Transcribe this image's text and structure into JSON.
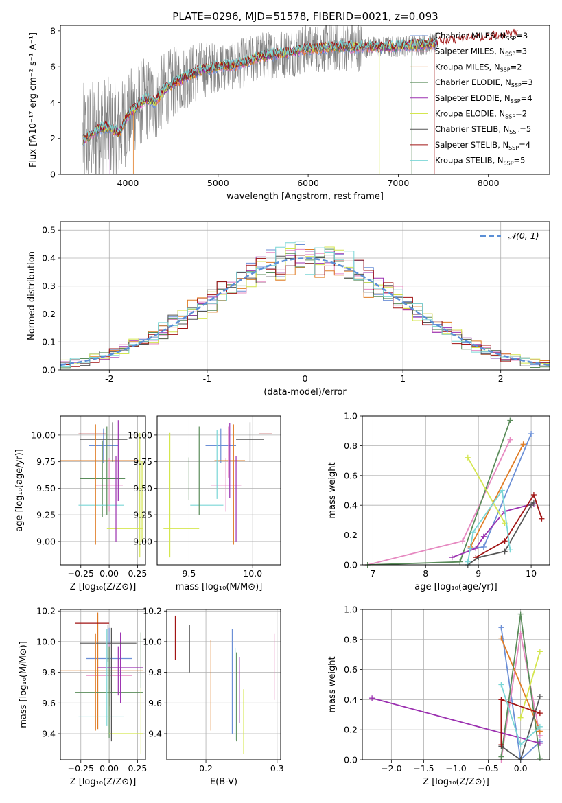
{
  "figure_title": "PLATE=0296, MJD=51578, FIBERID=0021, z=0.093",
  "model_colors": [
    "#6b8fd6",
    "#e688c0",
    "#e07c25",
    "#5a8c5a",
    "#9b30b0",
    "#d4e64e",
    "#555555",
    "#a11414",
    "#7ad6d6"
  ],
  "chart_data": [
    {
      "type": "line",
      "panel": "spectrum",
      "xlabel": "wavelength [Angstrom, rest frame]",
      "ylabel": "Flux [fλ10⁻¹⁷ erg cm⁻² s⁻¹ A⁻¹]",
      "xlim": [
        3250,
        8680
      ],
      "ylim": [
        0,
        8.3
      ],
      "xticks": [
        4000,
        5000,
        6000,
        7000,
        8000
      ],
      "yticks": [
        0,
        2,
        4,
        6,
        8
      ],
      "legend": [
        {
          "name": "Chabrier MILES",
          "nssp": "3"
        },
        {
          "name": "Salpeter MILES",
          "nssp": "3"
        },
        {
          "name": "Kroupa MILES",
          "nssp": "2"
        },
        {
          "name": "Chabrier ELODIE",
          "nssp": "3"
        },
        {
          "name": "Salpeter ELODIE",
          "nssp": "4"
        },
        {
          "name": "Kroupa ELODIE",
          "nssp": "2"
        },
        {
          "name": "Chabrier STELIB",
          "nssp": "5"
        },
        {
          "name": "Salpeter STELIB",
          "nssp": "4"
        },
        {
          "name": "Kroupa STELIB",
          "nssp": "5"
        }
      ],
      "nssp_label": "N",
      "nssp_sub": "SSP",
      "continuum": {
        "x": [
          3500,
          3600,
          3700,
          3800,
          3900,
          4000,
          4100,
          4200,
          4300,
          4400,
          4500,
          4600,
          4800,
          5000,
          5200,
          5500,
          5800,
          6000,
          6300,
          6600,
          6900,
          7200,
          7400,
          7700,
          8000,
          8300
        ],
        "y": [
          1.9,
          2.2,
          2.6,
          2.6,
          2.3,
          3.3,
          3.8,
          4.2,
          4.0,
          4.7,
          5.1,
          5.3,
          5.8,
          6.0,
          6.1,
          6.6,
          6.8,
          7.0,
          7.1,
          7.1,
          7.1,
          7.2,
          7.3,
          7.5,
          7.6,
          7.8
        ]
      }
    },
    {
      "type": "step",
      "panel": "residual-distribution",
      "xlabel": "(data-model)/error",
      "ylabel": "Normed distribution",
      "xlim": [
        -2.5,
        2.5
      ],
      "ylim": [
        0,
        0.53
      ],
      "xticks": [
        -2,
        -1,
        0,
        1,
        2
      ],
      "yticks": [
        0.0,
        0.1,
        0.2,
        0.3,
        0.4,
        0.5
      ],
      "legend": "𝒩(0, 1)",
      "curve": "normal(0,1)"
    },
    {
      "type": "scatter",
      "panel": "age-vs-Z",
      "xlabel": "Z [log₁₀(Z/Z⊙)]",
      "ylabel": "age  [log₁₀(age/yr)]",
      "xlim": [
        -0.43,
        0.32
      ],
      "ylim": [
        8.78,
        10.18
      ],
      "xticks": [
        -0.25,
        0.0,
        0.25
      ],
      "xtick_labels": [
        "−0.25",
        "0.00",
        "0.25"
      ],
      "yticks": [
        9.0,
        9.25,
        9.5,
        9.75,
        10.0
      ],
      "yticklabels": [
        "9.00",
        "9.25",
        "9.50",
        "9.75",
        "10.00"
      ],
      "points": [
        {
          "x": -0.05,
          "y": 9.9,
          "ex": 0.13,
          "ey": 0.16
        },
        {
          "x": 0.0,
          "y": 9.53,
          "ex": 0.12,
          "ey": 0.25
        },
        {
          "x": -0.18,
          "y": 9.76,
          "ex": 0.45,
          "ey": 0.0
        },
        {
          "x": -0.06,
          "y": 9.59,
          "ex": 0.2,
          "ey": 0.36
        },
        {
          "x": 0.08,
          "y": 9.76,
          "ex": 0.0,
          "ey": 0.38
        },
        {
          "x": 0.14,
          "y": 9.12,
          "ex": 0.16,
          "ey": 0.0
        },
        {
          "x": -0.05,
          "y": 9.96,
          "ex": 0.21,
          "ey": 0.0
        },
        {
          "x": -0.15,
          "y": 10.01,
          "ex": 0.12,
          "ey": 0.0
        },
        {
          "x": -0.07,
          "y": 9.34,
          "ex": 0.2,
          "ey": 0.0
        }
      ],
      "extra_vlines": [
        {
          "x": -0.12,
          "y": [
            8.97,
            10.1
          ],
          "color": 2
        },
        {
          "x": 0.27,
          "y": [
            8.85,
            10.02
          ],
          "color": 5
        },
        {
          "x": 0.06,
          "y": [
            9.0,
            9.8
          ],
          "color": 4
        },
        {
          "x": 0.03,
          "y": [
            9.75,
            10.12
          ],
          "color": 6
        },
        {
          "x": 0.29,
          "y": [
            9.0,
            9.76
          ],
          "color": 5
        },
        {
          "x": -0.02,
          "y": [
            9.25,
            10.08
          ],
          "color": 3
        }
      ]
    },
    {
      "type": "scatter",
      "panel": "age-vs-mass",
      "xlabel": "mass [log₁₀(M/M⊙)]",
      "ylabel": "",
      "xlim": [
        9.25,
        10.22
      ],
      "ylim": [
        8.78,
        10.18
      ],
      "xticks": [
        9.5,
        10.0
      ],
      "xtick_labels": [
        "9.5",
        "10.0"
      ],
      "yticks": [
        9.0,
        9.25,
        9.5,
        9.75,
        10.0
      ],
      "yticklabels": [
        "9.00",
        "9.25",
        "9.50",
        "9.75",
        "10.00"
      ],
      "points": [
        {
          "x": 9.75,
          "y": 9.9,
          "ex": 0.12,
          "ey": 0.16
        },
        {
          "x": 9.79,
          "y": 9.53,
          "ex": 0.12,
          "ey": 0.25
        },
        {
          "x": 9.82,
          "y": 9.76,
          "ex": 0.12,
          "ey": 0.0
        },
        {
          "x": 9.5,
          "y": 9.59,
          "ex": 0.0,
          "ey": 0.2
        },
        {
          "x": 9.82,
          "y": 9.76,
          "ex": 0.0,
          "ey": 0.35
        },
        {
          "x": 9.44,
          "y": 9.12,
          "ex": 0.14,
          "ey": 0.0
        },
        {
          "x": 9.98,
          "y": 9.96,
          "ex": 0.11,
          "ey": 0.0
        },
        {
          "x": 10.1,
          "y": 10.01,
          "ex": 0.05,
          "ey": 0.0
        },
        {
          "x": 9.64,
          "y": 9.34,
          "ex": 0.13,
          "ey": 0.0
        }
      ],
      "extra_vlines": [
        {
          "x": 9.85,
          "y": [
            8.97,
            10.1
          ],
          "color": 2
        },
        {
          "x": 9.35,
          "y": [
            8.85,
            10.02
          ],
          "color": 5
        },
        {
          "x": 9.87,
          "y": [
            9.0,
            9.8
          ],
          "color": 4
        },
        {
          "x": 9.98,
          "y": [
            9.75,
            10.12
          ],
          "color": 6
        },
        {
          "x": 9.58,
          "y": [
            9.25,
            10.08
          ],
          "color": 3
        },
        {
          "x": 9.81,
          "y": [
            9.6,
            10.08
          ],
          "color": 1
        },
        {
          "x": 9.72,
          "y": [
            9.4,
            10.05
          ],
          "color": 8
        }
      ]
    },
    {
      "type": "line",
      "panel": "mass-weight-vs-age",
      "xlabel": "age  [log₁₀(age/yr)]",
      "ylabel": "mass weight",
      "xlim": [
        6.8,
        10.35
      ],
      "ylim": [
        0,
        1
      ],
      "xticks": [
        7,
        8,
        9,
        10
      ],
      "yticks": [
        0.0,
        0.2,
        0.4,
        0.6,
        0.8,
        1.0
      ],
      "series": [
        {
          "color": 0,
          "x": [
            8.85,
            9.1,
            10.0
          ],
          "y": [
            0.11,
            0.12,
            0.88
          ]
        },
        {
          "color": 1,
          "x": [
            6.9,
            8.7,
            9.6
          ],
          "y": [
            0.0,
            0.16,
            0.84
          ]
        },
        {
          "color": 2,
          "x": [
            8.85,
            9.85
          ],
          "y": [
            0.12,
            0.81
          ]
        },
        {
          "color": 3,
          "x": [
            6.9,
            8.65,
            9.6
          ],
          "y": [
            0.0,
            0.02,
            0.97
          ]
        },
        {
          "color": 4,
          "x": [
            8.5,
            8.95,
            9.1,
            9.5,
            10.05
          ],
          "y": [
            0.05,
            0.11,
            0.19,
            0.36,
            0.41
          ]
        },
        {
          "color": 5,
          "x": [
            8.8,
            9.5
          ],
          "y": [
            0.72,
            0.28
          ]
        },
        {
          "color": 6,
          "x": [
            8.8,
            9.0,
            9.5,
            10.0,
            10.05
          ],
          "y": [
            0.0,
            0.05,
            0.09,
            0.4,
            0.42
          ]
        },
        {
          "color": 7,
          "x": [
            8.95,
            9.5,
            10.05,
            10.2
          ],
          "y": [
            0.05,
            0.16,
            0.47,
            0.31
          ]
        },
        {
          "color": 8,
          "x": [
            8.8,
            8.9,
            9.45,
            9.6
          ],
          "y": [
            0.02,
            0.22,
            0.5,
            0.1
          ]
        }
      ]
    },
    {
      "type": "scatter",
      "panel": "mass-vs-Z",
      "xlabel": "Z [log₁₀(Z/Z⊙)]",
      "ylabel": "mass [log₁₀(M/M⊙)]",
      "xlim": [
        -0.43,
        0.32
      ],
      "ylim": [
        9.23,
        10.21
      ],
      "xticks": [
        -0.25,
        0.0,
        0.25
      ],
      "xtick_labels": [
        "−0.25",
        "0.00",
        "0.25"
      ],
      "yticks": [
        9.4,
        9.6,
        9.8,
        10.0,
        10.2
      ],
      "yticklabels": [
        "9.4",
        "9.6",
        "9.8",
        "10.0",
        "10.2"
      ],
      "points": [
        {
          "x": 0.0,
          "y": 9.89,
          "ex": 0.2,
          "ey": 0.2
        },
        {
          "x": 0.0,
          "y": 9.78,
          "ex": 0.2,
          "ey": 0.2
        },
        {
          "x": -0.1,
          "y": 9.81,
          "ex": 0.4,
          "ey": 0.38
        },
        {
          "x": 0.0,
          "y": 9.67,
          "ex": 0.3,
          "ey": 0.3
        },
        {
          "x": 0.1,
          "y": 9.83,
          "ex": 0.2,
          "ey": 0.23
        },
        {
          "x": 0.15,
          "y": 9.4,
          "ex": 0.15,
          "ey": 0.0
        },
        {
          "x": -0.01,
          "y": 9.99,
          "ex": 0.25,
          "ey": 0.12
        },
        {
          "x": -0.15,
          "y": 10.12,
          "ex": 0.15,
          "ey": 0.0
        },
        {
          "x": -0.07,
          "y": 9.51,
          "ex": 0.2,
          "ey": 0.0
        }
      ],
      "extra_vlines": [
        {
          "x": -0.12,
          "y": [
            9.42,
            10.05
          ],
          "color": 2
        },
        {
          "x": 0.28,
          "y": [
            9.27,
            9.7
          ],
          "color": 5
        },
        {
          "x": 0.08,
          "y": [
            9.65,
            9.97
          ],
          "color": 4
        },
        {
          "x": 0.02,
          "y": [
            9.35,
            10.09
          ],
          "color": 6
        },
        {
          "x": -0.02,
          "y": [
            9.45,
            10.08
          ],
          "color": 8
        },
        {
          "x": 0.28,
          "y": [
            9.7,
            10.06
          ],
          "color": 3
        }
      ]
    },
    {
      "type": "errorbar",
      "panel": "mass-vs-EBV",
      "xlabel": "E(B-V)",
      "ylabel": "",
      "xlim": [
        0.145,
        0.305
      ],
      "ylim": [
        9.23,
        10.21
      ],
      "xticks": [
        0.2,
        0.3
      ],
      "xtick_labels": [
        "0.2",
        "0.3"
      ],
      "yticks": [
        9.4,
        9.6,
        9.8,
        10.0,
        10.2
      ],
      "yticklabels": [
        "9.4",
        "9.6",
        "9.8",
        "10.0",
        "10.2"
      ],
      "vlines": [
        {
          "x": 0.157,
          "y": [
            9.88,
            10.17
          ],
          "color": 7
        },
        {
          "x": 0.177,
          "y": [
            9.8,
            10.11
          ],
          "color": 6
        },
        {
          "x": 0.207,
          "y": [
            9.42,
            10.01
          ],
          "color": 2
        },
        {
          "x": 0.237,
          "y": [
            9.4,
            10.08
          ],
          "color": 0
        },
        {
          "x": 0.241,
          "y": [
            9.36,
            9.96
          ],
          "color": 8
        },
        {
          "x": 0.243,
          "y": [
            9.35,
            9.93
          ],
          "color": 3
        },
        {
          "x": 0.247,
          "y": [
            9.47,
            9.9
          ],
          "color": 4
        },
        {
          "x": 0.253,
          "y": [
            9.27,
            9.69
          ],
          "color": 5
        },
        {
          "x": 0.296,
          "y": [
            9.62,
            10.05
          ],
          "color": 1
        }
      ]
    },
    {
      "type": "line",
      "panel": "mass-weight-vs-Z",
      "xlabel": "Z [log₁₀(Z/Z⊙)]",
      "ylabel": "mass weight",
      "xlim": [
        -2.45,
        0.45
      ],
      "ylim": [
        0,
        1
      ],
      "xticks": [
        -2.0,
        -1.5,
        -1.0,
        -0.5,
        0.0
      ],
      "xtick_labels": [
        "−2.0",
        "−1.5",
        "−1.0",
        "−0.5",
        "0.0"
      ],
      "yticks": [
        0.0,
        0.2,
        0.4,
        0.6,
        0.8,
        1.0
      ],
      "series": [
        {
          "color": 0,
          "x": [
            -0.3,
            0.0,
            0.3
          ],
          "y": [
            0.88,
            0.0,
            0.12
          ]
        },
        {
          "color": 1,
          "x": [
            -0.3,
            0.0,
            0.3
          ],
          "y": [
            0.0,
            0.84,
            0.16
          ]
        },
        {
          "color": 2,
          "x": [
            -0.3,
            0.3
          ],
          "y": [
            0.81,
            0.19
          ]
        },
        {
          "color": 3,
          "x": [
            -0.3,
            0.0,
            0.3
          ],
          "y": [
            0.02,
            0.97,
            0.01
          ]
        },
        {
          "color": 4,
          "x": [
            -2.3,
            0.3
          ],
          "y": [
            0.41,
            0.11
          ]
        },
        {
          "color": 5,
          "x": [
            0.0,
            0.3
          ],
          "y": [
            0.28,
            0.72
          ]
        },
        {
          "color": 6,
          "x": [
            -0.3,
            0.0,
            0.3
          ],
          "y": [
            0.09,
            0.0,
            0.42
          ]
        },
        {
          "color": 7,
          "x": [
            -0.3,
            -0.3,
            0.3
          ],
          "y": [
            0.1,
            0.4,
            0.31
          ]
        },
        {
          "color": 8,
          "x": [
            -0.3,
            0.0,
            0.3
          ],
          "y": [
            0.5,
            0.1,
            0.22
          ]
        }
      ]
    }
  ]
}
